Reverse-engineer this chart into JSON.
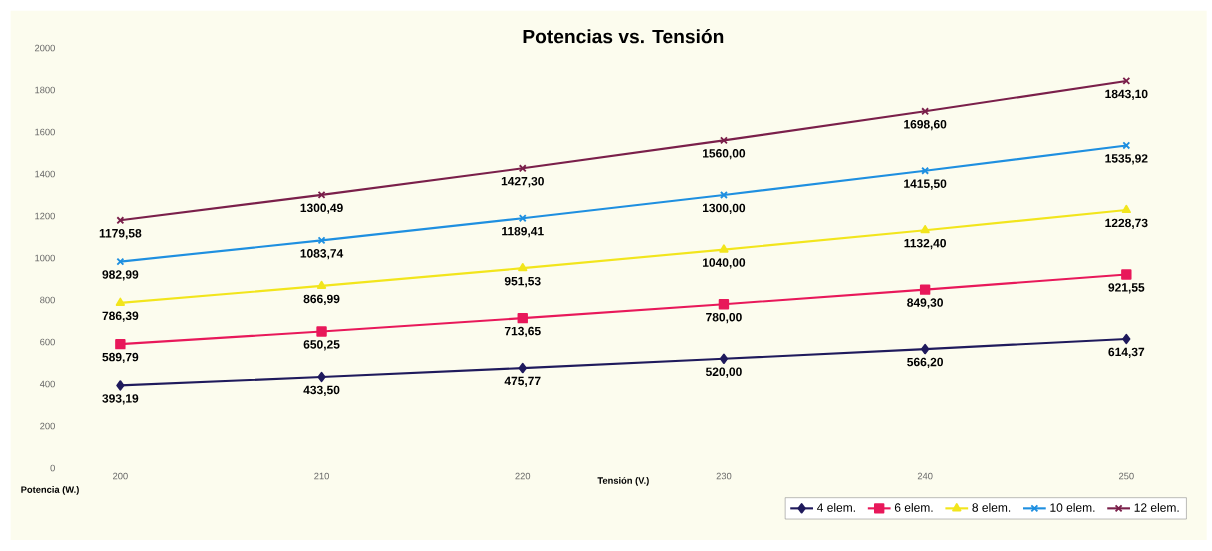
{
  "chart_data": {
    "type": "line",
    "title": "Potencias vs. Tensión",
    "xlabel": "Tensión (V.)",
    "annotations": [
      "Potencia (W.)"
    ],
    "categories": [
      "200",
      "210",
      "220",
      "230",
      "240",
      "250"
    ],
    "ylim": [
      0,
      2000
    ],
    "yticks": [
      0,
      200,
      400,
      600,
      800,
      1000,
      1200,
      1400,
      1600,
      1800,
      2000
    ],
    "legend": "bottom right",
    "grid": false,
    "series": [
      {
        "name": "4 elem.",
        "color": "#1f1a5c",
        "marker": "diamond",
        "values": [
          393.19,
          433.5,
          475.77,
          520.0,
          566.2,
          614.37
        ],
        "value_labels": [
          "393,19",
          "433,50",
          "475,77",
          "520,00",
          "566,20",
          "614,37"
        ]
      },
      {
        "name": "6 elem.",
        "color": "#e8185a",
        "marker": "square",
        "values": [
          589.79,
          650.25,
          713.65,
          780.0,
          849.3,
          921.55
        ],
        "value_labels": [
          "589,79",
          "650,25",
          "713,65",
          "780,00",
          "849,30",
          "921,55"
        ]
      },
      {
        "name": "8 elem.",
        "color": "#f2e51c",
        "marker": "triangle",
        "values": [
          786.39,
          866.99,
          951.53,
          1040.0,
          1132.4,
          1228.73
        ],
        "value_labels": [
          "786,39",
          "866,99",
          "951,53",
          "1040,00",
          "1132,40",
          "1228,73"
        ]
      },
      {
        "name": "10 elem.",
        "color": "#1e8fe0",
        "marker": "cross",
        "values": [
          982.99,
          1083.74,
          1189.41,
          1300.0,
          1415.5,
          1535.92
        ],
        "value_labels": [
          "982,99",
          "1083,74",
          "1189,41",
          "1300,00",
          "1415,50",
          "1535,92"
        ]
      },
      {
        "name": "12 elem.",
        "color": "#7a1f4a",
        "marker": "cross",
        "values": [
          1179.58,
          1300.49,
          1427.3,
          1560.0,
          1698.6,
          1843.1
        ],
        "value_labels": [
          "1179,58",
          "1300,49",
          "1427,30",
          "1560,00",
          "1698,60",
          "1843,10"
        ]
      }
    ]
  }
}
